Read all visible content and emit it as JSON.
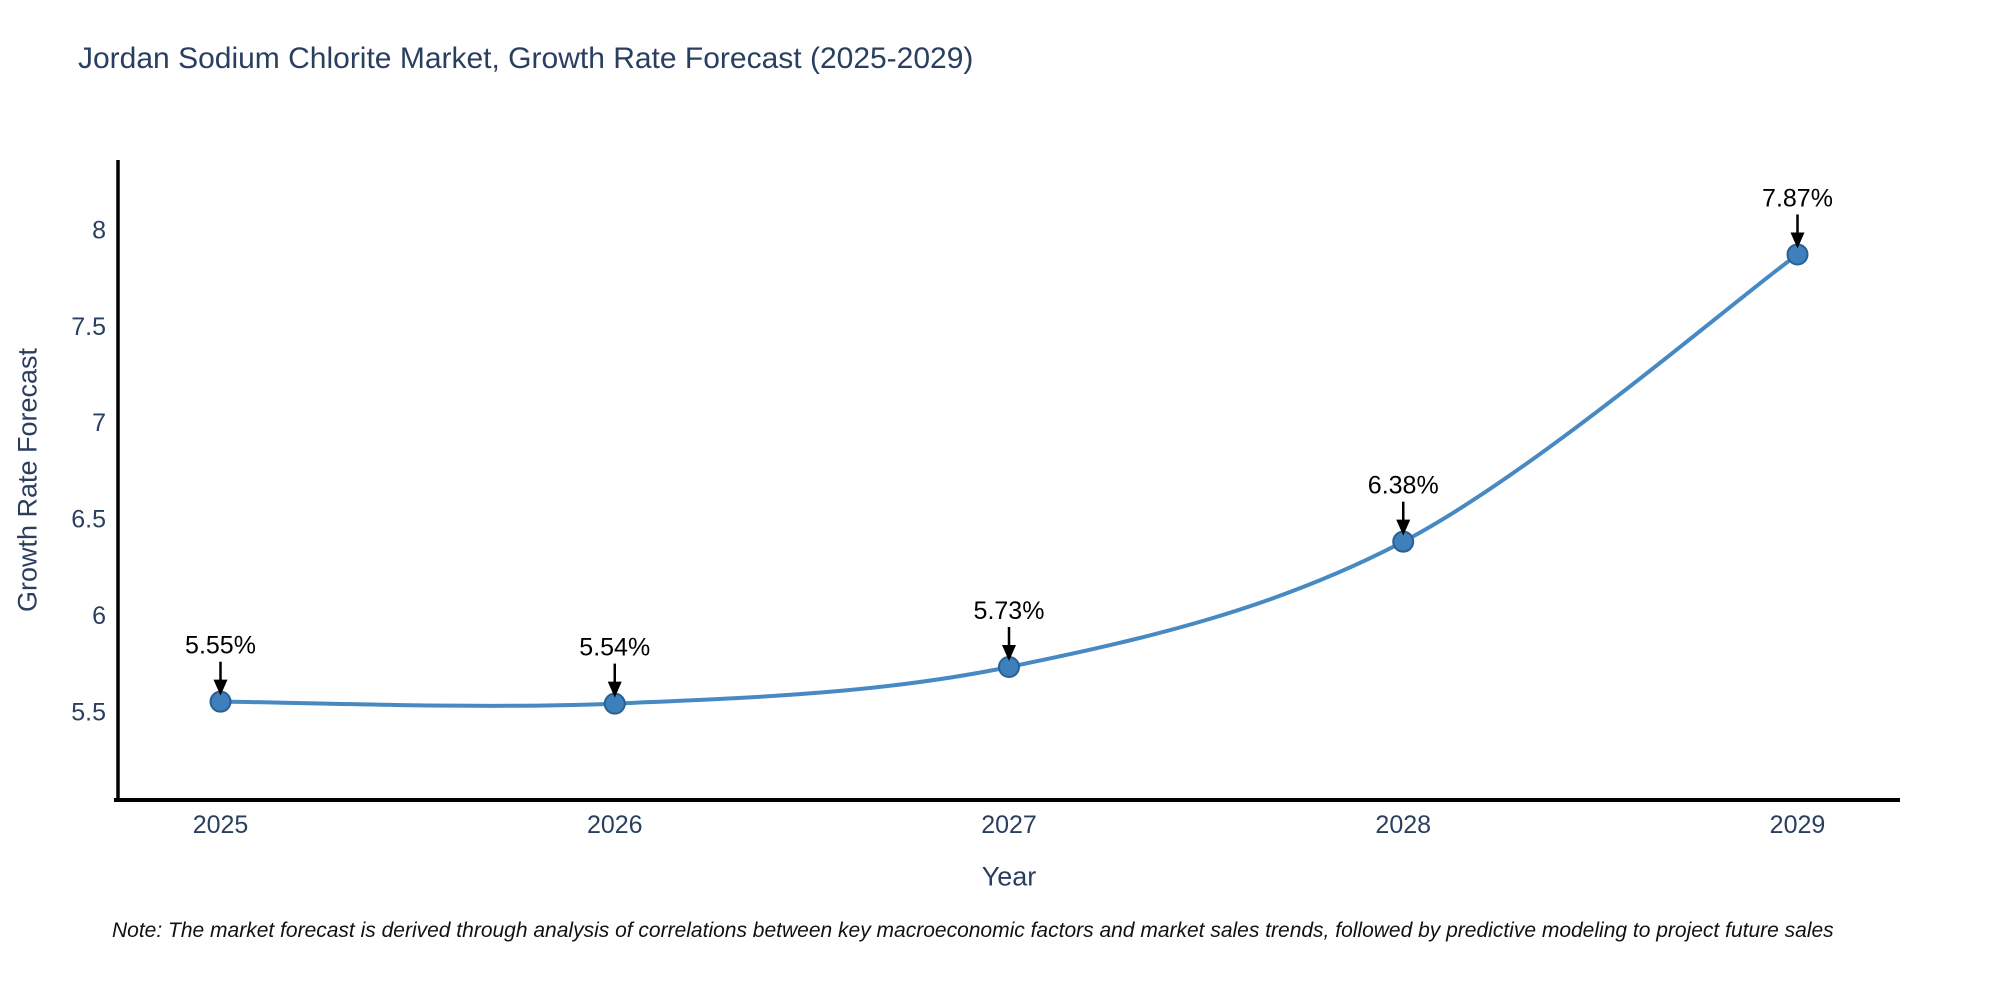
{
  "chart_data": {
    "type": "line",
    "title": "Jordan Sodium Chlorite Market, Growth Rate Forecast (2025-2029)",
    "xlabel": "Year",
    "ylabel": "Growth Rate Forecast",
    "note": "Note: The market forecast is derived through analysis of correlations between key macroeconomic factors and market sales trends, followed by predictive modeling to project future sales",
    "x": [
      2025,
      2026,
      2027,
      2028,
      2029
    ],
    "values": [
      5.55,
      5.54,
      5.73,
      6.38,
      7.87
    ],
    "point_labels": [
      "5.55%",
      "5.54%",
      "5.73%",
      "6.38%",
      "7.87%"
    ],
    "xticks": [
      2025,
      2026,
      2027,
      2028,
      2029
    ],
    "xtick_labels": [
      "2025",
      "2026",
      "2027",
      "2028",
      "2029"
    ],
    "yticks": [
      5.5,
      6,
      6.5,
      7,
      7.5,
      8
    ],
    "ytick_labels": [
      "5.5",
      "6",
      "6.5",
      "7",
      "7.5",
      "8"
    ],
    "xlim": [
      2024.74,
      2029.26
    ],
    "ylim": [
      5.04,
      8.36
    ],
    "grid": false,
    "legend": false,
    "line_shape": "spline",
    "colors": {
      "line": "#4789c2",
      "marker_fill": "#3d80bb",
      "marker_edge": "#2b6094",
      "axis": "#000000",
      "tick_text": "#2a3f5f",
      "annotation": "#000000",
      "background": "#ffffff"
    }
  }
}
